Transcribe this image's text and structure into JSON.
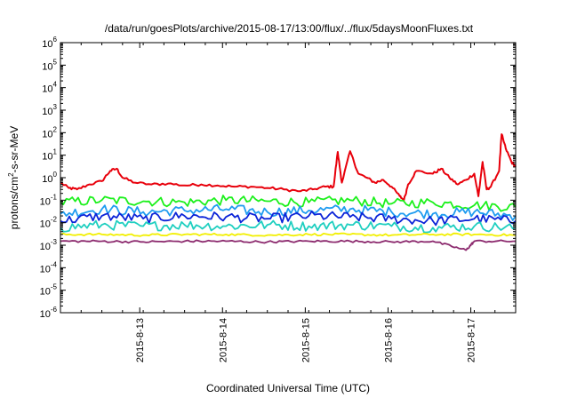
{
  "chart_data": {
    "type": "line",
    "title": "/data/run/goesPlots/archive/2015-08-17/13:00/flux/../flux/5daysMoonFluxes.txt",
    "xlabel": "Coordinated Universal Time (UTC)",
    "ylabel_parts": [
      "protons/cm",
      "2",
      "-s-sr-MeV"
    ],
    "x_start": "2015-08-12 01:00",
    "x_end": "2015-08-17 13:00",
    "xlim_days": [
      0,
      5.5
    ],
    "x_ticks": [
      {
        "label": "2015-8-13",
        "day": 0.958
      },
      {
        "label": "2015-8-14",
        "day": 1.958
      },
      {
        "label": "2015-8-15",
        "day": 2.958
      },
      {
        "label": "2015-8-16",
        "day": 3.958
      },
      {
        "label": "2015-8-17",
        "day": 4.958
      }
    ],
    "y_scale": "log",
    "ylim_exp": [
      -6,
      6
    ],
    "y_ticks": [
      {
        "base": "10",
        "exp": "6"
      },
      {
        "base": "10",
        "exp": "5"
      },
      {
        "base": "10",
        "exp": "4"
      },
      {
        "base": "10",
        "exp": "3"
      },
      {
        "base": "10",
        "exp": "2"
      },
      {
        "base": "10",
        "exp": "1"
      },
      {
        "base": "10",
        "exp": "0"
      },
      {
        "base": "10",
        "exp": "-1"
      },
      {
        "base": "10",
        "exp": "-2"
      },
      {
        "base": "10",
        "exp": "-3"
      },
      {
        "base": "10",
        "exp": "-4"
      },
      {
        "base": "10",
        "exp": "-5"
      },
      {
        "base": "10",
        "exp": "-6"
      }
    ],
    "grid": false,
    "legend": "none",
    "series": [
      {
        "color": "#e8000b",
        "x_days": [
          0,
          0.1,
          0.2,
          0.35,
          0.5,
          0.6,
          0.68,
          0.75,
          0.9,
          1.1,
          1.3,
          1.5,
          1.7,
          1.9,
          2.1,
          2.3,
          2.5,
          2.7,
          2.9,
          3.05,
          3.2,
          3.3,
          3.35,
          3.4,
          3.5,
          3.6,
          3.7,
          3.8,
          3.9,
          4.0,
          4.1,
          4.15,
          4.2,
          4.3,
          4.5,
          4.6,
          4.7,
          4.8,
          4.9,
          5.0,
          5.05,
          5.1,
          5.15,
          5.2,
          5.3,
          5.33,
          5.38,
          5.45,
          5.5
        ],
        "y_values": [
          0.6,
          0.35,
          0.3,
          0.5,
          0.7,
          2.0,
          2.5,
          1.0,
          0.6,
          0.5,
          0.55,
          0.45,
          0.5,
          0.45,
          0.4,
          0.4,
          0.35,
          0.3,
          0.25,
          0.3,
          0.4,
          0.4,
          14,
          0.6,
          15,
          1.5,
          1.0,
          0.6,
          0.8,
          0.4,
          0.15,
          0.1,
          0.5,
          2.0,
          1.5,
          2.5,
          1.0,
          0.5,
          0.8,
          1.5,
          0.15,
          5.0,
          0.3,
          0.4,
          2.0,
          85,
          20,
          5,
          3
        ]
      },
      {
        "color": "#1cf01c",
        "x_days": [
          0,
          0.5,
          1.0,
          1.5,
          2.0,
          2.5,
          3.0,
          3.5,
          4.0,
          4.5,
          5.0,
          5.5
        ],
        "y_values": [
          0.08,
          0.1,
          0.09,
          0.08,
          0.1,
          0.09,
          0.08,
          0.1,
          0.07,
          0.08,
          0.06,
          0.05
        ]
      },
      {
        "color": "#1f9cf0",
        "x_days": [
          0,
          0.5,
          1.0,
          1.5,
          2.0,
          2.5,
          3.0,
          3.5,
          4.0,
          4.5,
          5.0,
          5.5
        ],
        "y_values": [
          0.025,
          0.04,
          0.03,
          0.035,
          0.04,
          0.03,
          0.035,
          0.04,
          0.03,
          0.025,
          0.03,
          0.02
        ]
      },
      {
        "color": "#0c24d8",
        "x_days": [
          0,
          0.5,
          1.0,
          1.5,
          2.0,
          2.5,
          3.0,
          3.5,
          4.0,
          4.5,
          5.0,
          5.5
        ],
        "y_values": [
          0.012,
          0.02,
          0.015,
          0.02,
          0.018,
          0.015,
          0.02,
          0.018,
          0.015,
          0.012,
          0.015,
          0.012
        ]
      },
      {
        "color": "#1fcfc0",
        "x_days": [
          0,
          0.5,
          1.0,
          1.5,
          2.0,
          2.5,
          3.0,
          3.5,
          4.0,
          4.5,
          5.0,
          5.5
        ],
        "y_values": [
          0.006,
          0.008,
          0.007,
          0.008,
          0.007,
          0.008,
          0.007,
          0.008,
          0.007,
          0.006,
          0.007,
          0.006
        ]
      },
      {
        "color": "#f2ef00",
        "x_days": [
          0,
          0.5,
          1.0,
          1.5,
          2.0,
          2.5,
          3.0,
          3.5,
          4.0,
          4.5,
          5.0,
          5.5
        ],
        "y_values": [
          0.003,
          0.003,
          0.0028,
          0.003,
          0.003,
          0.0028,
          0.003,
          0.003,
          0.0028,
          0.003,
          0.003,
          0.0028
        ]
      },
      {
        "color": "#8c2a6e",
        "x_days": [
          0,
          0.5,
          1.0,
          1.5,
          2.0,
          2.5,
          3.0,
          3.5,
          4.0,
          4.5,
          4.9,
          5.0,
          5.5
        ],
        "y_values": [
          0.0015,
          0.0015,
          0.0014,
          0.0015,
          0.0015,
          0.0014,
          0.0015,
          0.0015,
          0.0014,
          0.0015,
          0.0006,
          0.0015,
          0.0015
        ]
      }
    ]
  }
}
